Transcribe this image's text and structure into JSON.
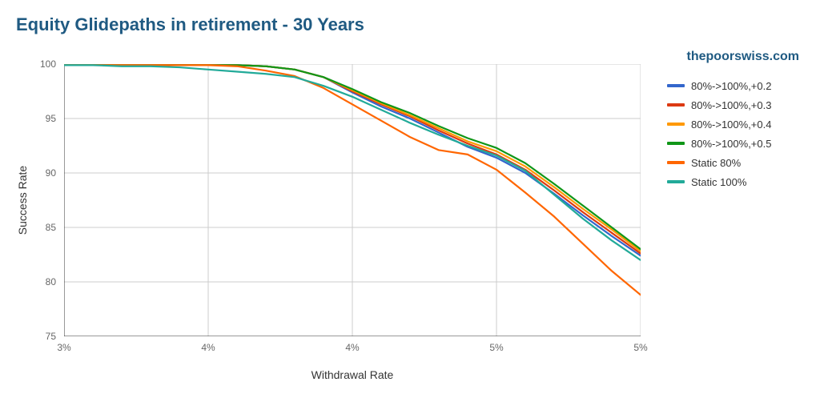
{
  "title": "Equity Glidepaths in retirement - 30 Years",
  "subtitle": "thepoorswiss.com",
  "title_color": "#1f5a82",
  "background_color": "#ffffff",
  "xlabel": "Withdrawal Rate",
  "ylabel": "Success Rate",
  "axis_label_color": "#333333",
  "tick_color": "#666666",
  "chart": {
    "type": "line",
    "x_numeric": [
      3.0,
      3.1,
      3.2,
      3.3,
      3.4,
      3.5,
      3.6,
      3.7,
      3.8,
      3.9,
      4.0,
      4.1,
      4.2,
      4.3,
      4.4,
      4.5,
      4.6,
      4.7,
      4.8,
      4.9,
      5.0
    ],
    "x_tick_vals": [
      3.0,
      3.5,
      4.0,
      4.5,
      5.0
    ],
    "x_tick_labels": [
      "3%",
      "4%",
      "4%",
      "5%",
      "5%"
    ],
    "y_tick_vals": [
      75,
      80,
      85,
      90,
      95,
      100
    ],
    "y_tick_labels": [
      "75",
      "80",
      "85",
      "90",
      "95",
      "100"
    ],
    "xlim": [
      3.0,
      5.0
    ],
    "ylim": [
      75,
      100
    ],
    "grid_color": "#cccccc",
    "axis_line_color": "#333333",
    "line_width": 2.2,
    "series": [
      {
        "name": "80%->100%,+0.2",
        "color": "#3366cc",
        "y": [
          99.9,
          99.9,
          99.9,
          99.9,
          99.9,
          99.9,
          99.9,
          99.8,
          99.5,
          98.8,
          97.4,
          96.1,
          95.0,
          93.7,
          92.4,
          91.4,
          90.0,
          88.1,
          86.1,
          84.2,
          82.4
        ]
      },
      {
        "name": "80%->100%,+0.3",
        "color": "#dc3912",
        "y": [
          99.9,
          99.9,
          99.9,
          99.9,
          99.9,
          99.9,
          99.9,
          99.8,
          99.5,
          98.8,
          97.5,
          96.3,
          95.2,
          93.9,
          92.7,
          91.7,
          90.3,
          88.4,
          86.4,
          84.5,
          82.6
        ]
      },
      {
        "name": "80%->100%,+0.4",
        "color": "#ff9900",
        "y": [
          99.9,
          99.9,
          99.9,
          99.9,
          99.9,
          99.9,
          99.9,
          99.8,
          99.5,
          98.8,
          97.6,
          96.4,
          95.3,
          94.1,
          92.9,
          92.0,
          90.6,
          88.7,
          86.7,
          84.8,
          82.8
        ]
      },
      {
        "name": "80%->100%,+0.5",
        "color": "#109618",
        "y": [
          99.9,
          99.9,
          99.9,
          99.9,
          99.9,
          99.9,
          99.9,
          99.8,
          99.5,
          98.8,
          97.7,
          96.5,
          95.5,
          94.3,
          93.2,
          92.3,
          90.9,
          89.0,
          87.0,
          85.0,
          83.0
        ]
      },
      {
        "name": "Static 80%",
        "color": "#ff6600",
        "y": [
          99.9,
          99.9,
          99.9,
          99.9,
          99.9,
          99.9,
          99.8,
          99.4,
          98.9,
          97.8,
          96.3,
          94.8,
          93.3,
          92.1,
          91.7,
          90.3,
          88.2,
          86.0,
          83.5,
          81.0,
          78.8
        ]
      },
      {
        "name": "Static 100%",
        "color": "#22aa99",
        "y": [
          99.9,
          99.9,
          99.8,
          99.8,
          99.7,
          99.5,
          99.3,
          99.1,
          98.8,
          98.0,
          97.0,
          95.8,
          94.6,
          93.5,
          92.5,
          91.6,
          90.2,
          88.0,
          85.8,
          83.8,
          82.0
        ]
      }
    ]
  },
  "legend": {
    "items": [
      {
        "label": "80%->100%,+0.2",
        "color": "#3366cc"
      },
      {
        "label": "80%->100%,+0.3",
        "color": "#dc3912"
      },
      {
        "label": "80%->100%,+0.4",
        "color": "#ff9900"
      },
      {
        "label": "80%->100%,+0.5",
        "color": "#109618"
      },
      {
        "label": "Static 80%",
        "color": "#ff6600"
      },
      {
        "label": "Static 100%",
        "color": "#22aa99"
      }
    ]
  }
}
